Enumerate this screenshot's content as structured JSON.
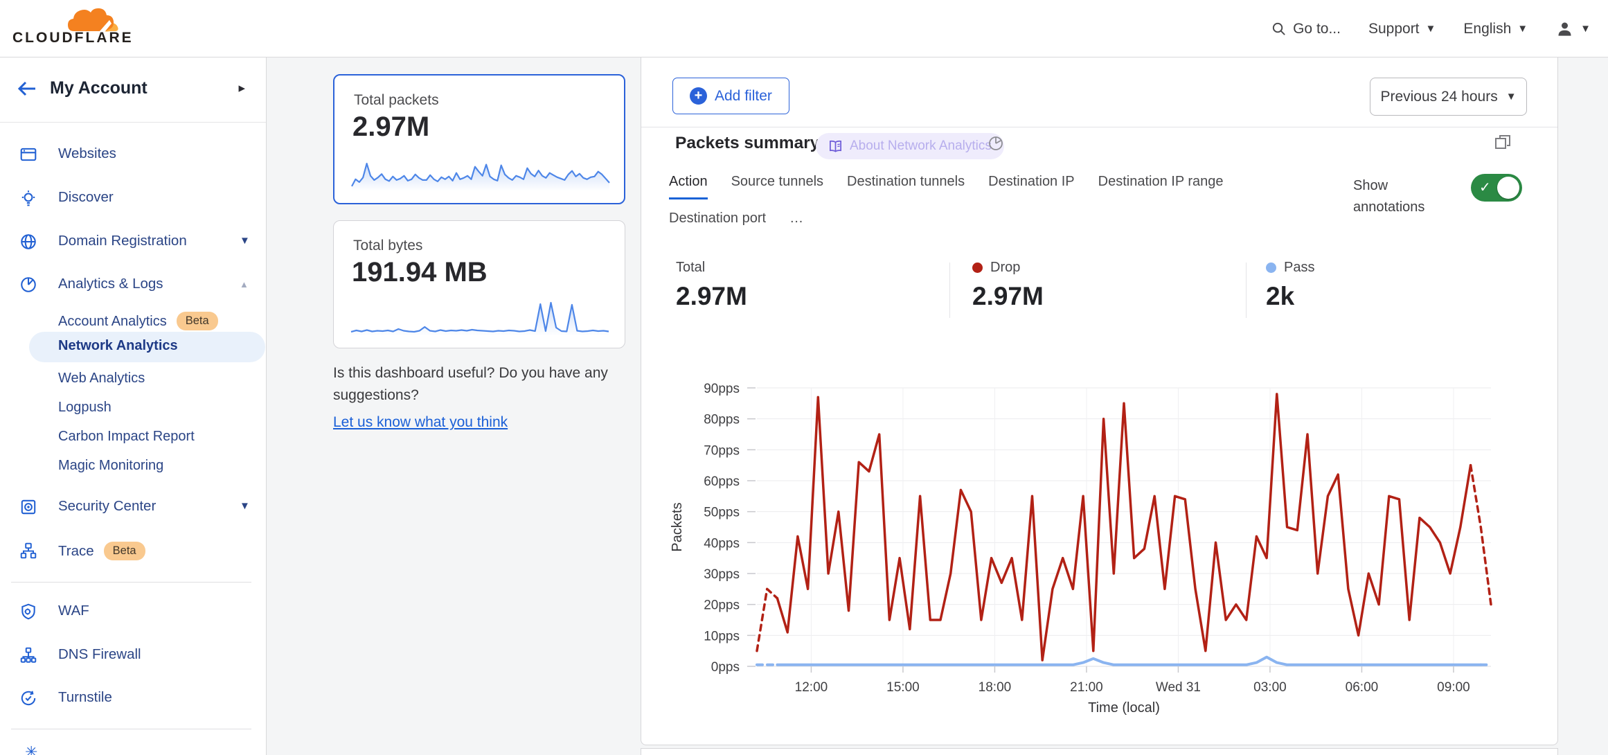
{
  "header": {
    "logo_text": "CLOUDFLARE",
    "goto_label": "Go to...",
    "support_label": "Support",
    "language_label": "English"
  },
  "sidebar": {
    "account_label": "My Account",
    "items": [
      {
        "label": "Websites",
        "icon": "browser"
      },
      {
        "label": "Discover",
        "icon": "bulb"
      },
      {
        "label": "Domain Registration",
        "icon": "globe",
        "caret": "down"
      },
      {
        "label": "Analytics & Logs",
        "icon": "pie",
        "caret": "up"
      },
      {
        "label": "Account Analytics",
        "sub": true,
        "badge": "Beta"
      },
      {
        "label": "Network Analytics",
        "sub": true,
        "selected": true
      },
      {
        "label": "Web Analytics",
        "sub": true
      },
      {
        "label": "Logpush",
        "sub": true
      },
      {
        "label": "Carbon Impact Report",
        "sub": true
      },
      {
        "label": "Magic Monitoring",
        "sub": true
      },
      {
        "label": "Security Center",
        "icon": "safe",
        "caret": "down"
      },
      {
        "label": "Trace",
        "icon": "trace",
        "badge": "Beta"
      },
      {
        "label": "WAF",
        "icon": "shield"
      },
      {
        "label": "DNS Firewall",
        "icon": "dns"
      },
      {
        "label": "Turnstile",
        "icon": "turnstile"
      }
    ]
  },
  "summary_cards": {
    "total_packets": {
      "title": "Total packets",
      "value": "2.97M"
    },
    "total_bytes": {
      "title": "Total bytes",
      "value": "191.94 MB"
    }
  },
  "feedback": {
    "question": "Is this dashboard useful? Do you have any suggestions?",
    "link": "Let us know what you think"
  },
  "filter_bar": {
    "add_filter_label": "Add filter",
    "time_range_label": "Previous 24 hours"
  },
  "panel": {
    "title": "Packets summary",
    "about_pill_label": "About Network Analytics",
    "tabs": [
      "Action",
      "Source tunnels",
      "Destination tunnels",
      "Destination IP",
      "Destination IP range",
      "Destination port",
      "…"
    ],
    "active_tab": "Action",
    "show_annotations_label": "Show annotations",
    "annotations_on": true,
    "stats": [
      {
        "label": "Total",
        "value": "2.97M"
      },
      {
        "label": "Drop",
        "value": "2.97M",
        "color": "#b22115"
      },
      {
        "label": "Pass",
        "value": "2k",
        "color": "#8ab4f0"
      }
    ]
  },
  "colors": {
    "accent_blue": "#2b62d9",
    "link_blue": "#1a5fd7",
    "drop_red": "#b22115",
    "pass_blue": "#8ab4f0",
    "toggle_green": "#2b8a44",
    "beta_badge_bg": "#f9c98f",
    "selected_pill_bg": "#e9f1fb"
  },
  "chart_data": [
    {
      "type": "line",
      "name": "packets-summary-time-series",
      "title": "Packets summary",
      "xlabel": "Time (local)",
      "ylabel": "Packets",
      "ylim": [
        0,
        90
      ],
      "grid": true,
      "legend_position": "stats-row-above",
      "yticks": [
        "0pps",
        "10pps",
        "20pps",
        "30pps",
        "40pps",
        "50pps",
        "60pps",
        "70pps",
        "80pps",
        "90pps"
      ],
      "xticks": [
        {
          "label": "12:00",
          "f": 0.074
        },
        {
          "label": "15:00",
          "f": 0.199
        },
        {
          "label": "18:00",
          "f": 0.324
        },
        {
          "label": "21:00",
          "f": 0.449
        },
        {
          "label": "Wed 31",
          "f": 0.574
        },
        {
          "label": "03:00",
          "f": 0.699
        },
        {
          "label": "06:00",
          "f": 0.824
        },
        {
          "label": "09:00",
          "f": 0.949
        }
      ],
      "series": [
        {
          "name": "Drop",
          "color": "#b22115",
          "width": 3.5,
          "dashed_head": 2,
          "dashed_tail": 2,
          "values": [
            5,
            25,
            22,
            11,
            42,
            25,
            87,
            30,
            50,
            18,
            66,
            63,
            75,
            15,
            35,
            12,
            55,
            15,
            15,
            30,
            57,
            50,
            15,
            35,
            27,
            35,
            15,
            55,
            2,
            25,
            35,
            25,
            55,
            5,
            80,
            30,
            85,
            35,
            38,
            55,
            25,
            55,
            54,
            25,
            5,
            40,
            15,
            20,
            15,
            42,
            35,
            88,
            45,
            44,
            75,
            30,
            55,
            62,
            25,
            10,
            30,
            20,
            55,
            54,
            15,
            48,
            45,
            40,
            30,
            45,
            65,
            45,
            20
          ]
        },
        {
          "name": "Pass",
          "color": "#8ab4f0",
          "width": 4,
          "dashed_head": 2,
          "dashed_tail": 1,
          "values": [
            0.5,
            0.5,
            0.5,
            0.5,
            0.5,
            0.5,
            0.5,
            0.5,
            0.5,
            0.5,
            0.5,
            0.5,
            0.5,
            0.5,
            0.5,
            0.5,
            0.5,
            0.5,
            0.5,
            0.5,
            0.5,
            0.5,
            0.5,
            0.5,
            0.5,
            0.5,
            0.5,
            0.5,
            0.5,
            0.5,
            0.5,
            0.5,
            1.2,
            2.5,
            1.2,
            0.5,
            0.5,
            0.5,
            0.5,
            0.5,
            0.5,
            0.5,
            0.5,
            0.5,
            0.5,
            0.5,
            0.5,
            0.5,
            0.5,
            1.2,
            3,
            1.2,
            0.5,
            0.5,
            0.5,
            0.5,
            0.5,
            0.5,
            0.5,
            0.5,
            0.5,
            0.5,
            0.5,
            0.5,
            0.5,
            0.5,
            0.5,
            0.5,
            0.5,
            0.5,
            0.5,
            0.5,
            0.5
          ]
        }
      ]
    },
    {
      "type": "line",
      "name": "total-packets-sparkline",
      "ylim": [
        0,
        95
      ],
      "values": [
        10,
        30,
        22,
        35,
        75,
        40,
        28,
        35,
        45,
        30,
        25,
        38,
        28,
        32,
        40,
        26,
        30,
        44,
        34,
        28,
        28,
        42,
        30,
        24,
        36,
        30,
        38,
        26,
        48,
        30,
        34,
        40,
        30,
        66,
        52,
        40,
        72,
        38,
        30,
        26,
        70,
        44,
        34,
        28,
        40,
        36,
        30,
        62,
        46,
        38,
        55,
        40,
        34,
        48,
        42,
        36,
        32,
        28,
        44,
        54,
        38,
        46,
        34,
        30,
        36,
        38,
        52,
        44,
        32,
        20
      ]
    },
    {
      "type": "line",
      "name": "total-bytes-sparkline",
      "ylim": [
        0,
        100
      ],
      "values": [
        8,
        12,
        9,
        13,
        9,
        11,
        10,
        12,
        9,
        16,
        11,
        9,
        8,
        11,
        22,
        11,
        9,
        13,
        10,
        12,
        11,
        13,
        11,
        14,
        12,
        11,
        10,
        9,
        11,
        10,
        12,
        11,
        9,
        10,
        13,
        10,
        88,
        10,
        92,
        20,
        10,
        9,
        86,
        11,
        9,
        10,
        12,
        10,
        11,
        9
      ]
    }
  ]
}
